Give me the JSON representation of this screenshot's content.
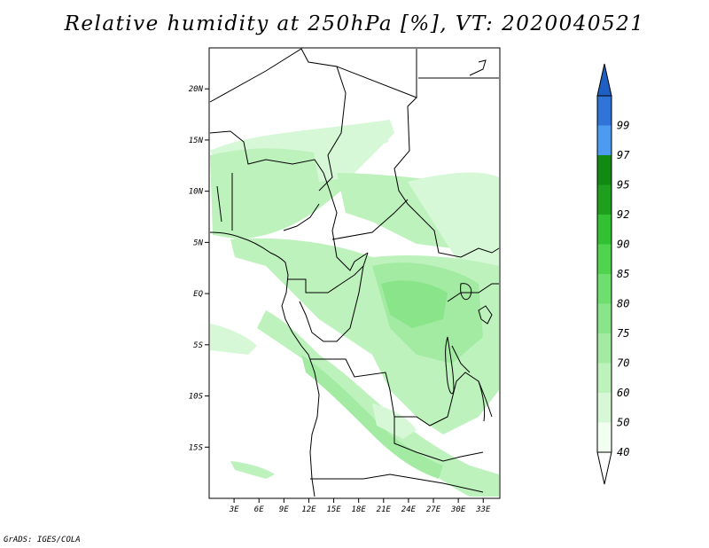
{
  "title": "Relative humidity at 250hPa [%], VT: 2020040521",
  "footer": "GrADS: IGES/COLA",
  "map": {
    "lat_range": [
      -20,
      24
    ],
    "lon_range": [
      0,
      35
    ],
    "lat_ticks": [
      {
        "value": 20,
        "label": "20N"
      },
      {
        "value": 15,
        "label": "15N"
      },
      {
        "value": 10,
        "label": "10N"
      },
      {
        "value": 5,
        "label": "5N"
      },
      {
        "value": 0,
        "label": "EQ"
      },
      {
        "value": -5,
        "label": "5S"
      },
      {
        "value": -10,
        "label": "10S"
      },
      {
        "value": -15,
        "label": "15S"
      }
    ],
    "lon_ticks": [
      {
        "value": 3,
        "label": "3E"
      },
      {
        "value": 6,
        "label": "6E"
      },
      {
        "value": 9,
        "label": "9E"
      },
      {
        "value": 12,
        "label": "12E"
      },
      {
        "value": 15,
        "label": "15E"
      },
      {
        "value": 18,
        "label": "18E"
      },
      {
        "value": 21,
        "label": "21E"
      },
      {
        "value": 24,
        "label": "24E"
      },
      {
        "value": 27,
        "label": "27E"
      },
      {
        "value": 30,
        "label": "30E"
      },
      {
        "value": 33,
        "label": "33E"
      }
    ]
  },
  "legend": {
    "levels": [
      {
        "label": "40",
        "color": "#f0fff0"
      },
      {
        "label": "50",
        "color": "#d6f8d6"
      },
      {
        "label": "60",
        "color": "#bdf2bd"
      },
      {
        "label": "70",
        "color": "#a3eba3"
      },
      {
        "label": "75",
        "color": "#8ae58a"
      },
      {
        "label": "80",
        "color": "#6ede6e"
      },
      {
        "label": "85",
        "color": "#50d450"
      },
      {
        "label": "90",
        "color": "#33c133"
      },
      {
        "label": "92",
        "color": "#1ea01e"
      },
      {
        "label": "95",
        "color": "#118a11"
      },
      {
        "label": "97",
        "color": "#4d9bf0"
      },
      {
        "label": "99",
        "color": "#2f74d6"
      }
    ],
    "below_color": "#ffffff",
    "above_color": "#1e5fc4"
  }
}
